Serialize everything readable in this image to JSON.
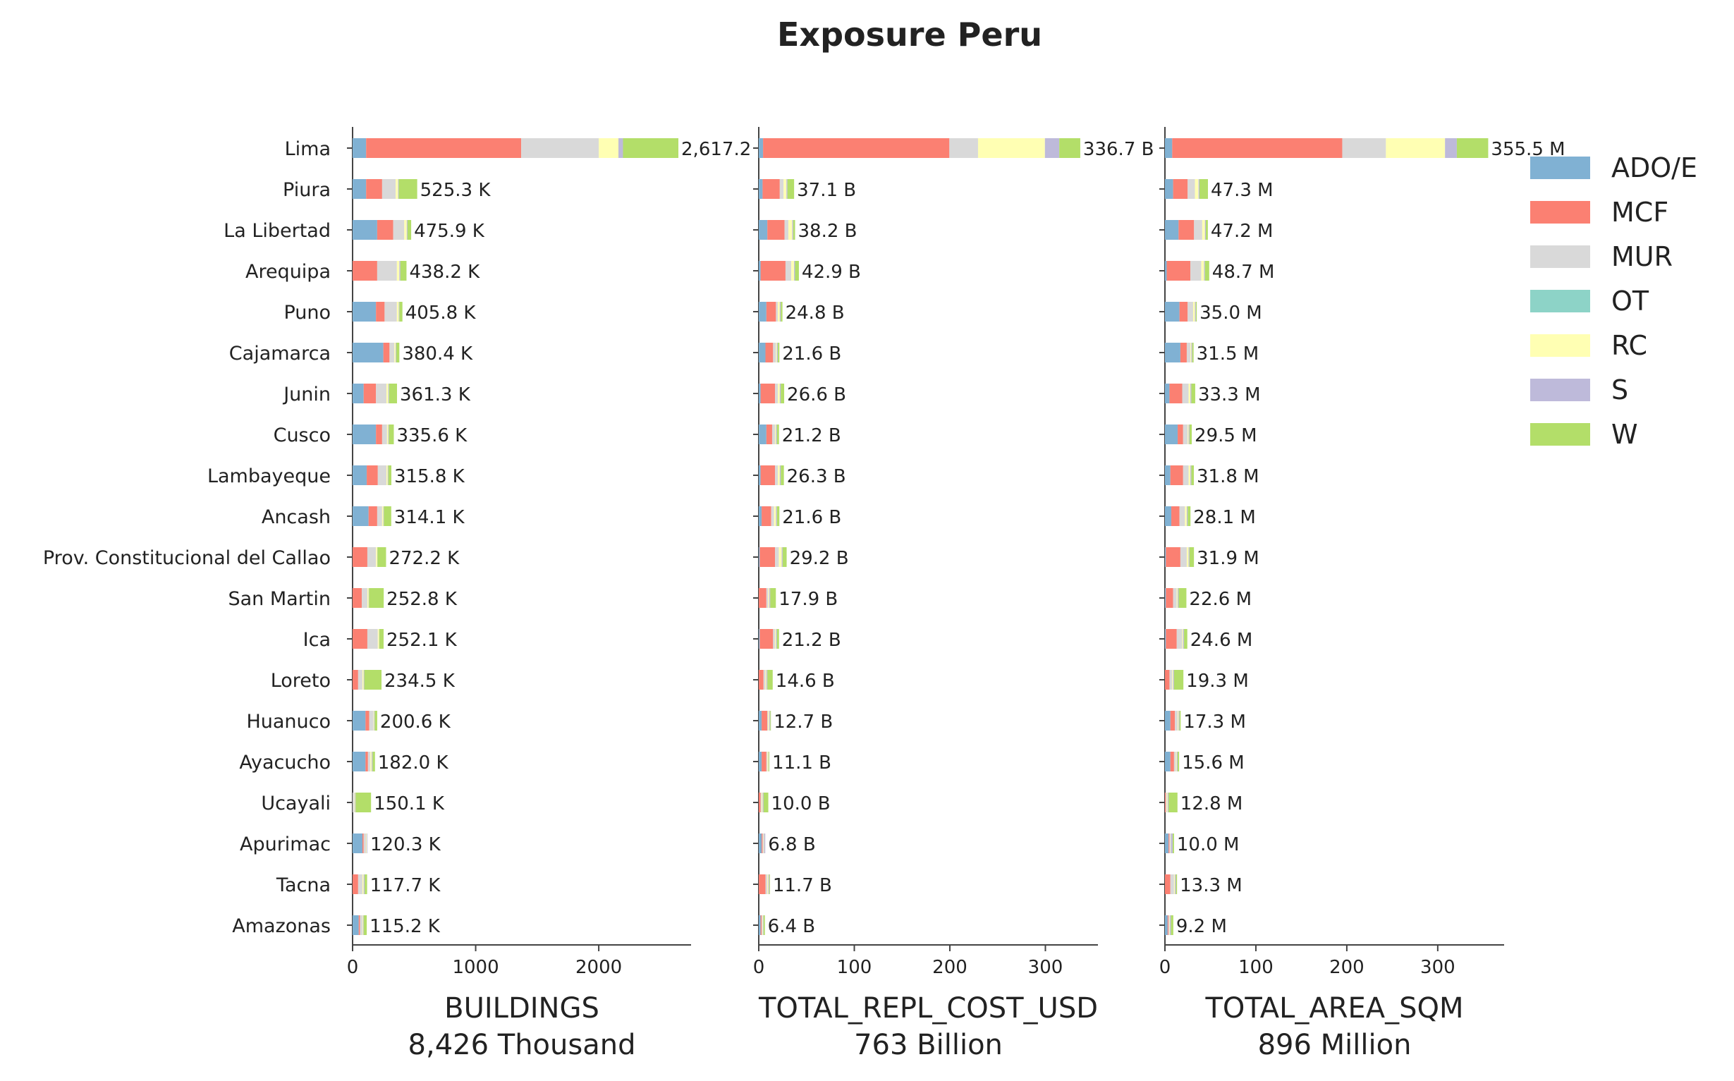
{
  "chart_data": {
    "type": "bar",
    "orientation": "horizontal",
    "stacked": true,
    "title": "Exposure Peru",
    "categories": [
      "Lima",
      "Piura",
      "La Libertad",
      "Arequipa",
      "Puno",
      "Cajamarca",
      "Junin",
      "Cusco",
      "Lambayeque",
      "Ancash",
      "Prov. Constitucional del Callao",
      "San Martin",
      "Ica",
      "Loreto",
      "Huanuco",
      "Ayacucho",
      "Ucayali",
      "Apurimac",
      "Tacna",
      "Amazonas"
    ],
    "legend": {
      "placement": "right",
      "entries": [
        {
          "name": "ADO/E",
          "color": "#80b1d3"
        },
        {
          "name": "MCF",
          "color": "#fb8072"
        },
        {
          "name": "MUR",
          "color": "#d9d9d9"
        },
        {
          "name": "OT",
          "color": "#8dd3c7"
        },
        {
          "name": "RC",
          "color": "#ffffb3"
        },
        {
          "name": "S",
          "color": "#bebada"
        },
        {
          "name": "W",
          "color": "#b3de69"
        }
      ]
    },
    "panels": [
      {
        "xlabel": "BUILDINGS",
        "subtitle": "8,426 Thousand",
        "xlim": [
          0,
          2750
        ],
        "xticks": [
          0,
          1000,
          2000
        ],
        "tick_labels": [
          "0",
          "1000",
          "2000"
        ],
        "totals": [
          "2,617.2",
          "525.3 K",
          "475.9 K",
          "438.2 K",
          "405.8 K",
          "380.4 K",
          "361.3 K",
          "335.6 K",
          "315.8 K",
          "314.1 K",
          "272.2 K",
          "252.8 K",
          "252.1 K",
          "234.5 K",
          "200.6 K",
          "182.0 K",
          "150.1 K",
          "120.3 K",
          "117.7 K",
          "115.2 K"
        ],
        "series": [
          [
            110,
            110,
            200,
            0,
            190,
            250,
            90,
            190,
            115,
            130,
            0,
            0,
            0,
            0,
            105,
            105,
            0,
            80,
            0,
            50
          ],
          [
            1260,
            130,
            130,
            200,
            70,
            50,
            100,
            50,
            90,
            70,
            120,
            75,
            120,
            45,
            30,
            20,
            0,
            10,
            45,
            10
          ],
          [
            630,
            110,
            90,
            160,
            100,
            40,
            85,
            40,
            70,
            40,
            70,
            45,
            85,
            35,
            35,
            20,
            15,
            20,
            35,
            20
          ],
          [
            0,
            0,
            0,
            0,
            0,
            0,
            0,
            0,
            0,
            0,
            0,
            0,
            0,
            0,
            0,
            0,
            0,
            0,
            0,
            0
          ],
          [
            160,
            20,
            20,
            20,
            15,
            10,
            15,
            10,
            10,
            10,
            10,
            10,
            10,
            10,
            5,
            10,
            5,
            5,
            10,
            5
          ],
          [
            37,
            5,
            6,
            8,
            5,
            5,
            6,
            5,
            5,
            4,
            2,
            3,
            2,
            5,
            5,
            7,
            5,
            5,
            8,
            5
          ],
          [
            450,
            150,
            30,
            50,
            25,
            25,
            65,
            40,
            25,
            60,
            70,
            120,
            35,
            140,
            20,
            20,
            125,
            0,
            20,
            25
          ]
        ]
      },
      {
        "xlabel": "TOTAL_REPL_COST_USD",
        "subtitle": "763 Billion",
        "xlim": [
          0,
          355
        ],
        "xticks": [
          0,
          100,
          200,
          300
        ],
        "tick_labels": [
          "0",
          "100",
          "200",
          "300"
        ],
        "totals": [
          "336.7 B",
          "37.1 B",
          "38.2 B",
          "42.9 B",
          "24.8 B",
          "21.6 B",
          "26.6 B",
          "21.2 B",
          "26.3 B",
          "21.6 B",
          "29.2 B",
          "17.9 B",
          "21.2 B",
          "14.6 B",
          "12.7 B",
          "11.1 B",
          "10.0 B",
          "6.8 B",
          "11.7 B",
          "6.4 B"
        ],
        "series": [
          [
            4.5,
            4,
            9,
            2,
            8,
            7,
            2,
            8,
            2,
            3,
            1,
            0,
            1,
            0,
            3,
            3,
            0,
            3,
            0,
            2
          ],
          [
            195,
            18,
            18,
            26,
            10,
            8,
            15,
            6,
            15,
            10,
            16,
            8,
            14,
            5,
            6,
            5,
            2,
            1,
            7,
            1
          ],
          [
            30,
            4,
            4,
            6,
            2,
            3,
            3,
            3,
            3,
            3,
            4,
            2,
            2,
            2,
            1,
            1,
            1,
            1,
            2,
            1
          ],
          [
            0,
            0,
            0,
            0,
            0,
            0,
            0,
            0,
            0,
            0,
            0,
            0,
            0,
            0,
            0,
            0,
            0,
            0,
            0,
            0
          ],
          [
            70,
            3,
            4,
            3,
            2,
            1,
            2,
            1,
            2,
            2,
            3,
            1,
            1,
            1,
            1,
            1,
            1,
            0.5,
            1,
            0.5
          ],
          [
            15,
            1,
            1,
            1,
            1,
            1,
            1,
            1,
            1,
            1,
            1,
            1,
            1,
            1,
            1,
            0.5,
            1,
            1.3,
            1,
            0.5
          ],
          [
            22,
            7,
            2,
            4,
            1.8,
            1.6,
            3.6,
            2.2,
            3.3,
            2.6,
            4.2,
            5.9,
            2.2,
            5.6,
            0.7,
            0.6,
            5,
            0,
            0.7,
            1.4
          ]
        ]
      },
      {
        "xlabel": "TOTAL_AREA_SQM",
        "subtitle": "896 Million",
        "xlim": [
          0,
          373
        ],
        "xticks": [
          0,
          100,
          200,
          300
        ],
        "tick_labels": [
          "0",
          "100",
          "200",
          "300"
        ],
        "totals": [
          "355.5 M",
          "47.3 M",
          "47.2 M",
          "48.7 M",
          "35.0 M",
          "31.5 M",
          "33.3 M",
          "29.5 M",
          "31.8 M",
          "28.1 M",
          "31.9 M",
          "22.6 M",
          "24.6 M",
          "19.3 M",
          "17.3 M",
          "15.6 M",
          "12.8 M",
          "10.0 M",
          "13.3 M",
          "9.2 M"
        ],
        "series": [
          [
            8,
            9,
            15,
            2,
            16,
            17,
            5,
            14,
            6,
            7,
            1,
            1,
            1,
            0,
            6,
            6,
            0,
            4,
            0,
            3
          ],
          [
            187,
            16,
            17,
            26,
            9,
            7,
            14,
            6,
            14,
            9,
            16,
            8,
            12,
            5,
            5,
            4,
            1,
            1,
            6,
            1
          ],
          [
            48,
            8,
            9,
            12,
            6,
            4,
            7,
            5,
            6,
            6,
            7,
            4,
            6,
            3,
            3,
            2,
            1,
            1,
            4,
            1
          ],
          [
            0,
            0,
            0,
            0,
            0,
            0,
            0,
            0,
            0,
            0,
            0,
            0,
            0,
            0,
            0,
            0,
            0,
            0,
            0,
            0
          ],
          [
            65,
            4,
            3,
            3,
            2,
            1,
            2,
            1,
            2,
            2,
            2,
            1,
            1,
            1,
            1,
            1,
            1,
            0.5,
            1,
            0.5
          ],
          [
            13,
            1,
            1,
            1,
            1,
            1,
            1,
            1,
            1,
            1,
            1,
            1,
            1,
            1,
            1,
            1,
            1,
            2,
            1,
            1
          ],
          [
            34.5,
            9.3,
            2.2,
            4.7,
            1,
            1.5,
            4.3,
            2.5,
            2.8,
            3.1,
            4.9,
            8.6,
            3.6,
            10.3,
            1.3,
            1.6,
            9.8,
            1.5,
            1.3,
            2.7
          ]
        ]
      }
    ]
  }
}
